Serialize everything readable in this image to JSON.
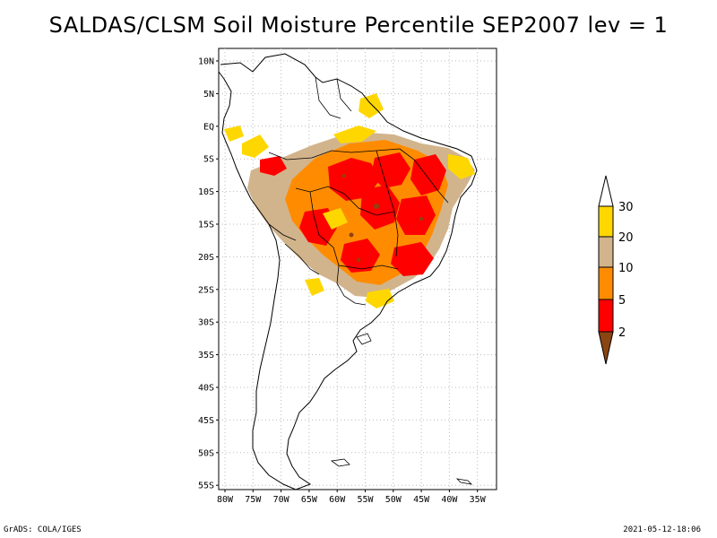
{
  "title": "SALDAS/CLSM Soil Moisture Percentile SEP2007 lev = 1",
  "map": {
    "region": "South America",
    "lat_labels": [
      "10N",
      "5N",
      "EQ",
      "5S",
      "10S",
      "15S",
      "20S",
      "25S",
      "30S",
      "35S",
      "40S",
      "45S",
      "50S",
      "55S"
    ],
    "lon_labels": [
      "80W",
      "75W",
      "70W",
      "65W",
      "60W",
      "55W",
      "50W",
      "45W",
      "40W",
      "35W"
    ]
  },
  "legend": {
    "labels": [
      "30",
      "20",
      "10",
      "5",
      "2"
    ],
    "colors": {
      "above_30": "#ffffff",
      "20_30": "#ffd700",
      "10_20": "#d2b48c",
      "5_10": "#ff8c00",
      "2_5": "#ff0000",
      "below_2": "#8b4513"
    }
  },
  "footer": {
    "left": "GrADS: COLA/IGES",
    "right": "2021-05-12-18:06"
  }
}
